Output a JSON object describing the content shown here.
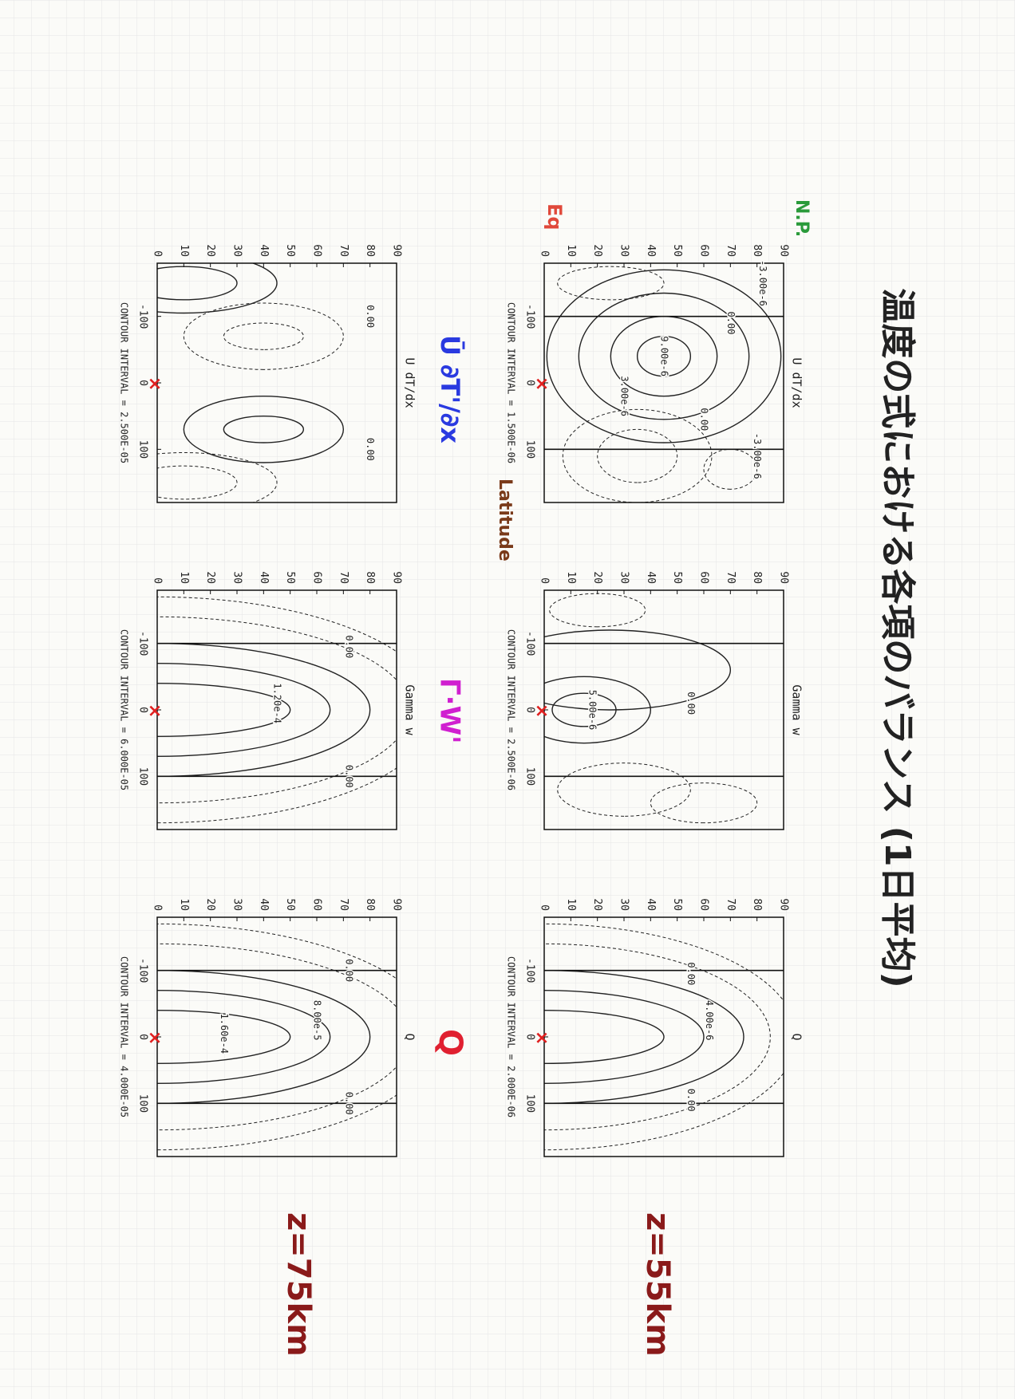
{
  "title": "温度の式における各項のバランス (1日平均)",
  "annotations": {
    "north_pole": "N.P.",
    "equator": "Eq",
    "latitude": "Latitude"
  },
  "yticks": [
    0,
    10,
    20,
    30,
    40,
    50,
    60,
    70,
    80,
    90
  ],
  "xticks": [
    -100,
    0,
    100
  ],
  "term_labels": [
    "Ū ∂T'/∂x",
    "Γ·W'",
    "Q"
  ],
  "rows": [
    {
      "height_label": "z=55km",
      "panels": [
        {
          "title": "U dT/dx",
          "contour_interval": "CONTOUR INTERVAL = 1.500E-06",
          "contour_labels": [
            "-3.00e-6",
            "0.00",
            "9.00e-6",
            "3.00e-6",
            "0.00",
            "-3.00e-6"
          ]
        },
        {
          "title": "Gamma w",
          "contour_interval": "CONTOUR INTERVAL = 2.500E-06",
          "contour_labels": [
            "0.00",
            "5.00e-6"
          ]
        },
        {
          "title": "Q",
          "contour_interval": "CONTOUR INTERVAL = 2.000E-06",
          "contour_labels": [
            "0.00",
            "4.00e-6",
            "0.00"
          ]
        }
      ]
    },
    {
      "height_label": "z=75km",
      "panels": [
        {
          "title": "U dT/dx",
          "contour_interval": "CONTOUR INTERVAL = 2.500E-05",
          "contour_labels": [
            "0.00",
            "0.00"
          ]
        },
        {
          "title": "Gamma w",
          "contour_interval": "CONTOUR INTERVAL = 6.000E-05",
          "contour_labels": [
            "0.00",
            "1.20e-4",
            "0.00"
          ]
        },
        {
          "title": "Q",
          "contour_interval": "CONTOUR INTERVAL = 4.000E-05",
          "contour_labels": [
            "0.00",
            "8.00e-5",
            "1.60e-4",
            "0.00"
          ]
        }
      ]
    }
  ]
}
